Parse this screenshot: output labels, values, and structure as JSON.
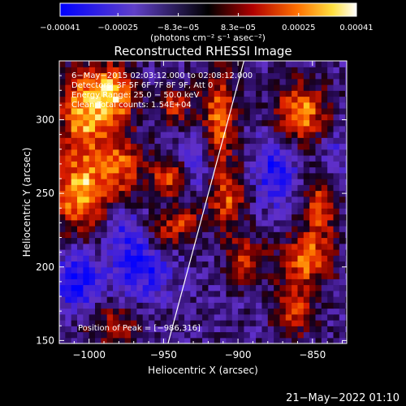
{
  "chart_data": {
    "type": "heatmap",
    "title": "Reconstructed RHESSI Image",
    "xlabel": "Heliocentric X (arcsec)",
    "ylabel": "Heliocentric Y (arcsec)",
    "xlim": [
      -1020,
      -827
    ],
    "ylim": [
      148,
      340
    ],
    "x_ticks": [
      -1000,
      -950,
      -900,
      -850
    ],
    "y_ticks": [
      150,
      200,
      250,
      300
    ],
    "x_tick_labels": [
      "−1000",
      "−950",
      "−900",
      "−850"
    ],
    "y_tick_labels": [
      "150",
      "200",
      "250",
      "300"
    ],
    "colorbar": {
      "min": -0.00041,
      "max": 0.00041,
      "tick_values": [
        -0.00041,
        -0.00025,
        -8.3e-05,
        8.3e-05,
        0.00025,
        0.00041
      ],
      "tick_labels": [
        "−0.00041",
        "−0.00025",
        "−8.3e−05",
        "8.3e−05",
        "0.00025",
        "0.00041"
      ],
      "units": "(photons cm⁻² s⁻¹ asec⁻²)"
    },
    "annotations": [
      "6−May−2015 02:03:12.000 to 02:08:12.000",
      "Detectors: 3F 5F 6F 7F 8F 9F, Att 0",
      "Energy Range: 25.0 − 50.0 keV",
      "Clean   Total counts: 1.54E+04"
    ],
    "peak_label": "Position of Peak = [−986,316]",
    "limb_line": {
      "x": [
        -947,
        -896
      ],
      "y": [
        148,
        340
      ]
    },
    "blobs": [
      {
        "x": -1003,
        "y": 305,
        "amp": 1.0,
        "sx": 12,
        "sy": 22
      },
      {
        "x": -982,
        "y": 318,
        "amp": 0.95,
        "sx": 9,
        "sy": 14
      },
      {
        "x": -1005,
        "y": 250,
        "amp": 1.0,
        "sx": 14,
        "sy": 18
      },
      {
        "x": -978,
        "y": 270,
        "amp": 0.7,
        "sx": 10,
        "sy": 14
      },
      {
        "x": -945,
        "y": 262,
        "amp": 0.75,
        "sx": 10,
        "sy": 10
      },
      {
        "x": -943,
        "y": 310,
        "amp": 0.6,
        "sx": 8,
        "sy": 10
      },
      {
        "x": -952,
        "y": 222,
        "amp": 0.65,
        "sx": 10,
        "sy": 10
      },
      {
        "x": -935,
        "y": 232,
        "amp": 0.55,
        "sx": 7,
        "sy": 8
      },
      {
        "x": -913,
        "y": 300,
        "amp": 0.85,
        "sx": 8,
        "sy": 24
      },
      {
        "x": -907,
        "y": 245,
        "amp": 0.7,
        "sx": 9,
        "sy": 14
      },
      {
        "x": -895,
        "y": 205,
        "amp": 0.6,
        "sx": 9,
        "sy": 12
      },
      {
        "x": -858,
        "y": 305,
        "amp": 0.95,
        "sx": 12,
        "sy": 14
      },
      {
        "x": -845,
        "y": 240,
        "amp": 0.7,
        "sx": 8,
        "sy": 16
      },
      {
        "x": -855,
        "y": 205,
        "amp": 0.85,
        "sx": 12,
        "sy": 12
      },
      {
        "x": -862,
        "y": 170,
        "amp": 0.65,
        "sx": 10,
        "sy": 12
      },
      {
        "x": -985,
        "y": 160,
        "amp": 0.5,
        "sx": 14,
        "sy": 10
      },
      {
        "x": -965,
        "y": 205,
        "amp": -0.75,
        "sx": 14,
        "sy": 16
      },
      {
        "x": -1008,
        "y": 190,
        "amp": -0.7,
        "sx": 10,
        "sy": 14
      },
      {
        "x": -928,
        "y": 270,
        "amp": -0.55,
        "sx": 8,
        "sy": 14
      },
      {
        "x": -875,
        "y": 265,
        "amp": -0.6,
        "sx": 10,
        "sy": 16
      },
      {
        "x": -980,
        "y": 230,
        "amp": -0.35,
        "sx": 8,
        "sy": 8
      },
      {
        "x": -835,
        "y": 275,
        "amp": -0.35,
        "sx": 7,
        "sy": 10
      }
    ]
  },
  "footer": {
    "date": "21−May−2022 01:10"
  }
}
